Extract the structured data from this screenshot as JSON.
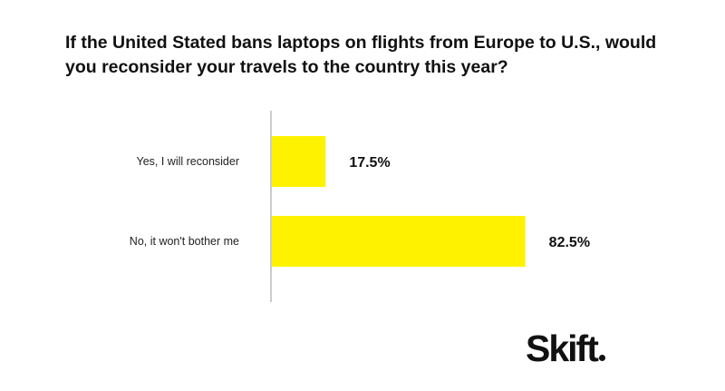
{
  "chart_data": {
    "type": "bar",
    "orientation": "horizontal",
    "title": "If the United Stated bans laptops on flights from Europe to U.S., would you reconsider your travels to the country this year?",
    "categories": [
      "Yes, I will reconsider",
      "No, it won't bother me"
    ],
    "values": [
      17.5,
      82.5
    ],
    "value_labels": [
      "17.5%",
      "82.5%"
    ],
    "xlim": [
      0,
      100
    ],
    "grid": false,
    "bar_color": "#FFF200"
  },
  "brand": {
    "logo": "Skift"
  }
}
